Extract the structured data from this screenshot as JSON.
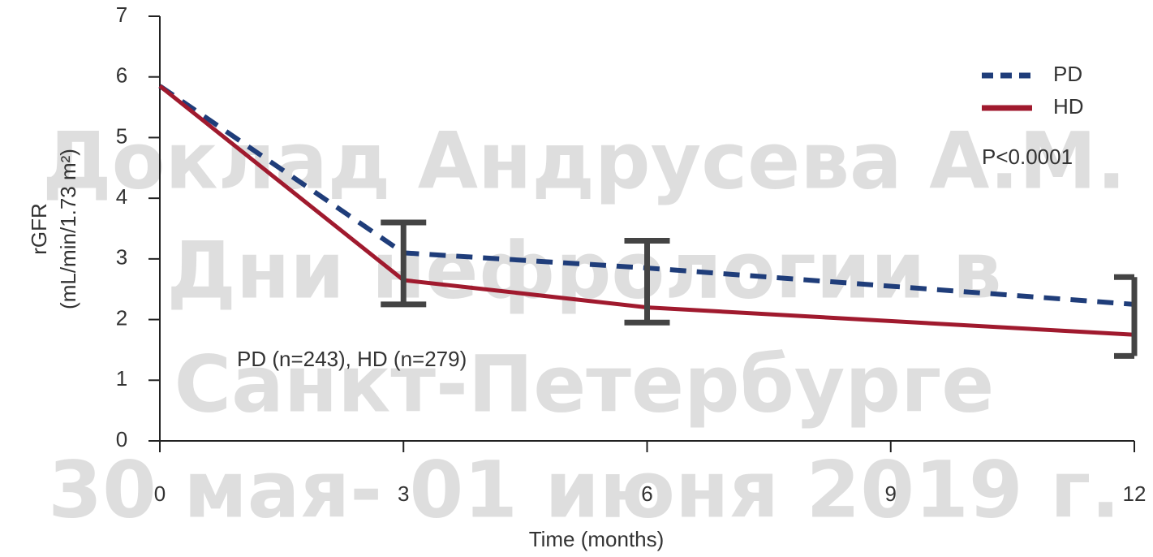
{
  "chart_data": {
    "type": "line",
    "xlabel": "Time (months)",
    "ylabel": [
      "rGFR",
      "(mL/min/1.73 m²)"
    ],
    "x": [
      0,
      3,
      6,
      12
    ],
    "series": [
      {
        "name": "PD",
        "color": "#1f3d7a",
        "style": "dashed",
        "values": [
          5.85,
          3.1,
          2.85,
          2.25
        ]
      },
      {
        "name": "HD",
        "color": "#a01a2e",
        "style": "solid",
        "values": [
          5.85,
          2.65,
          2.2,
          1.75
        ]
      }
    ],
    "error_bars": {
      "color": "#444444",
      "x": [
        3,
        6,
        12
      ],
      "low": [
        2.25,
        1.95,
        1.4
      ],
      "high": [
        3.6,
        3.3,
        2.7
      ]
    },
    "annotations": [
      "P<0.0001",
      "PD (n=243), HD (n=279)"
    ],
    "watermark": [
      "Доклад Андрусева А.М.",
      "Дни нефрологии в",
      "Санкт-Петербурге",
      "30 мая- 01 июня 2019 г."
    ],
    "xlim": [
      0,
      12
    ],
    "xticks": [
      0,
      3,
      6,
      9,
      12
    ],
    "ylim": [
      0,
      7
    ],
    "yticks": [
      0,
      1,
      2,
      3,
      4,
      5,
      6,
      7
    ],
    "grid": false,
    "legend": "top-right"
  }
}
